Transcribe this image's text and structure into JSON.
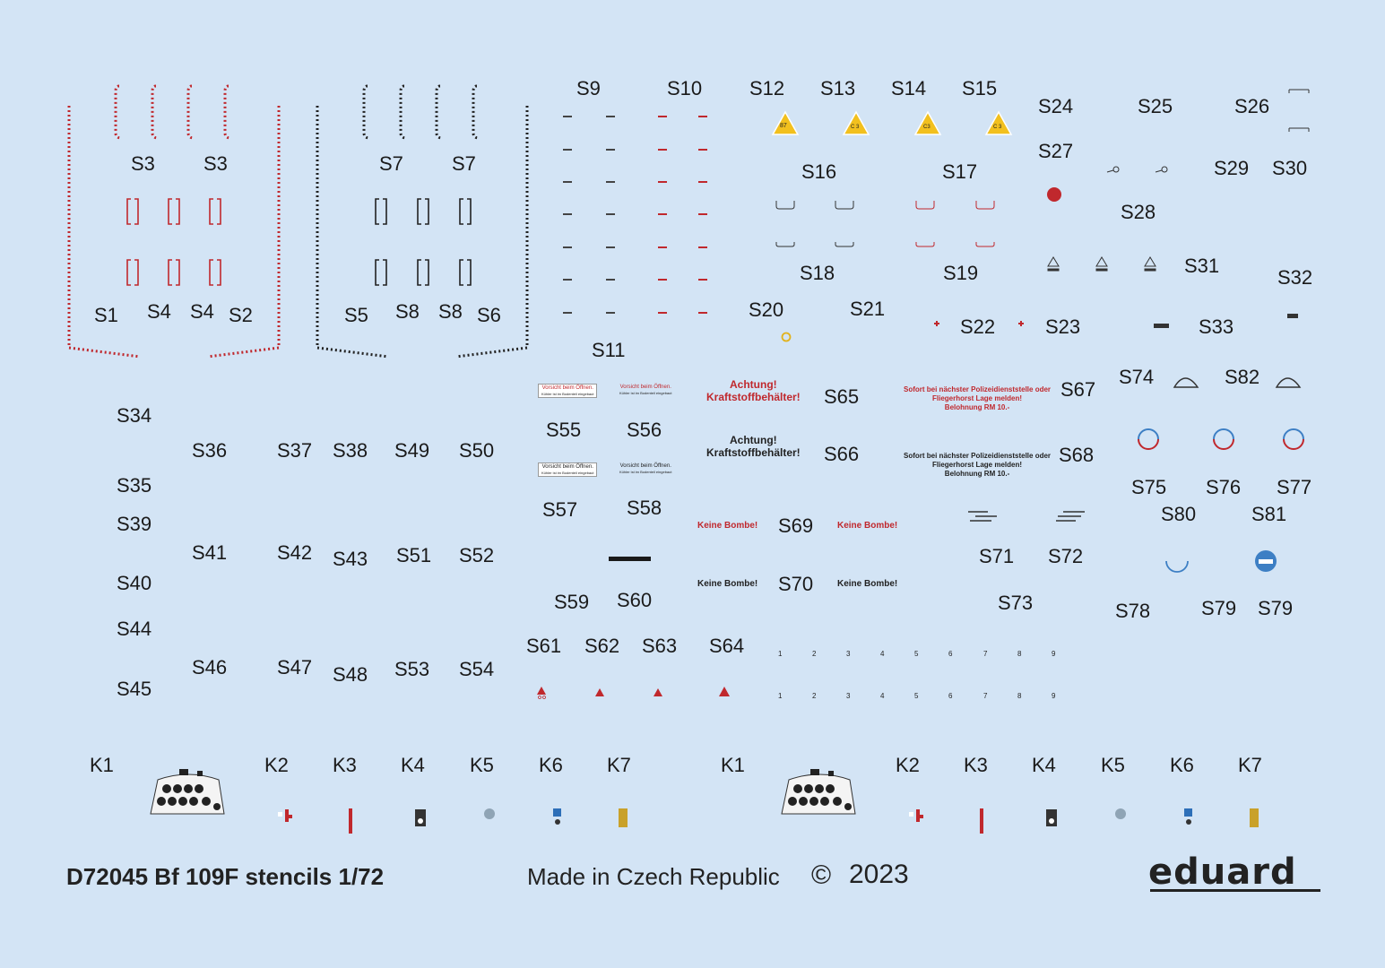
{
  "labels": {
    "S1": "S1",
    "S2": "S2",
    "S3": "S3",
    "S4": "S4",
    "S5": "S5",
    "S6": "S6",
    "S7": "S7",
    "S8": "S8",
    "S9": "S9",
    "S10": "S10",
    "S11": "S11",
    "S12": "S12",
    "S13": "S13",
    "S14": "S14",
    "S15": "S15",
    "S16": "S16",
    "S17": "S17",
    "S18": "S18",
    "S19": "S19",
    "S20": "S20",
    "S21": "S21",
    "S22": "S22",
    "S23": "S23",
    "S24": "S24",
    "S25": "S25",
    "S26": "S26",
    "S27": "S27",
    "S28": "S28",
    "S29": "S29",
    "S30": "S30",
    "S31": "S31",
    "S32": "S32",
    "S33": "S33",
    "S34": "S34",
    "S35": "S35",
    "S36": "S36",
    "S37": "S37",
    "S38": "S38",
    "S39": "S39",
    "S40": "S40",
    "S41": "S41",
    "S42": "S42",
    "S43": "S43",
    "S44": "S44",
    "S45": "S45",
    "S46": "S46",
    "S47": "S47",
    "S48": "S48",
    "S49": "S49",
    "S50": "S50",
    "S51": "S51",
    "S52": "S52",
    "S53": "S53",
    "S54": "S54",
    "S55": "S55",
    "S56": "S56",
    "S57": "S57",
    "S58": "S58",
    "S59": "S59",
    "S60": "S60",
    "S61": "S61",
    "S62": "S62",
    "S63": "S63",
    "S64": "S64",
    "S65": "S65",
    "S66": "S66",
    "S67": "S67",
    "S68": "S68",
    "S69": "S69",
    "S70": "S70",
    "S71": "S71",
    "S72": "S72",
    "S73": "S73",
    "S74": "S74",
    "S75": "S75",
    "S76": "S76",
    "S77": "S77",
    "S78": "S78",
    "S79": "S79",
    "S80": "S80",
    "S81": "S81",
    "S82": "S82",
    "K1": "K1",
    "K2": "K2",
    "K3": "K3",
    "K4": "K4",
    "K5": "K5",
    "K6": "K6",
    "K7": "K7"
  },
  "stencils": {
    "achtung_1": "Achtung!",
    "kraftstoff_1": "Kraftstoffbehälter!",
    "achtung_2": "Achtung!",
    "kraftstoff_2": "Kraftstoffbehälter!",
    "sofort_1_line1": "Sofort bei nächster Polizeidienststelle oder",
    "sofort_1_line2": "Fliegerhorst Lage melden!",
    "sofort_1_line3": "Belohnung RM 10.-",
    "sofort_2_line1": "Sofort bei nächster Polizeidienststelle oder",
    "sofort_2_line2": "Fliegerhorst Lage melden!",
    "sofort_2_line3": "Belohnung RM 10.-",
    "keine_bombe": "Keine Bombe!",
    "vorsicht_title": "Vorsicht beim Öffnen.",
    "vorsicht_sub": "Kühler ist im Bodenteil eingebaut",
    "fuel_87": "87",
    "fuel_c3": "C 3",
    "fuel_c3_small": "C3",
    "digits": [
      "1",
      "2",
      "3",
      "4",
      "5",
      "6",
      "7",
      "8",
      "9"
    ]
  },
  "footer": {
    "product": "D72045 Bf 109F stencils 1/72",
    "made_in": "Made in Czech Republic",
    "copyright_symbol": "©",
    "year": "2023",
    "brand": "eduard"
  },
  "colors": {
    "background": "#d3e4f5",
    "stencil_red": "#c0282d",
    "stencil_dark": "#222222",
    "triangle_yellow": "#f2c01e",
    "ring_blue": "#3d7fc4"
  }
}
